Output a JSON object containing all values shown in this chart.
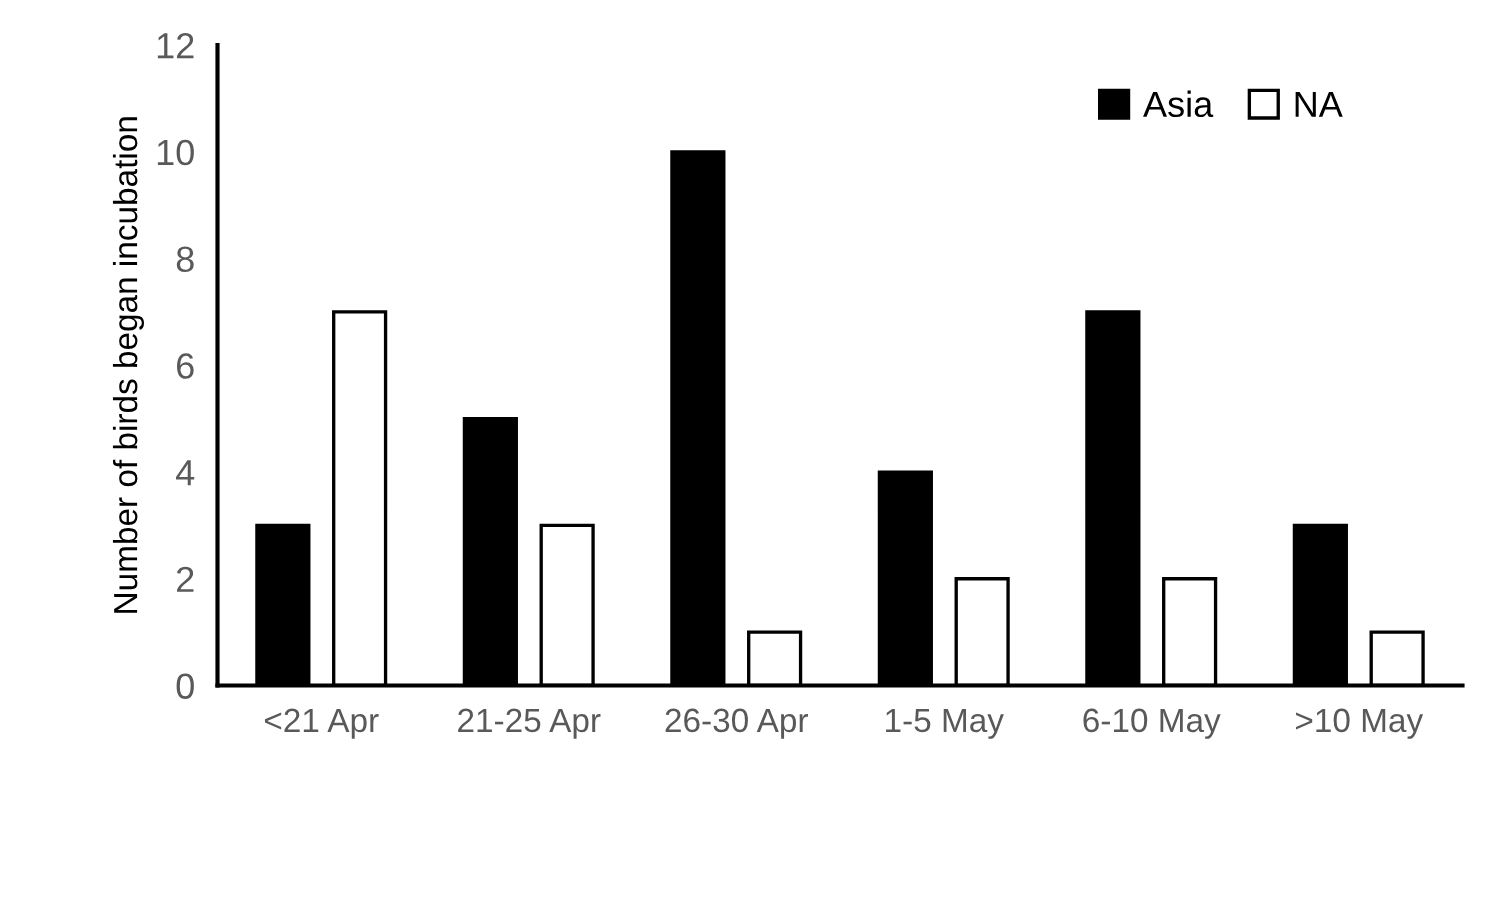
{
  "chart_data": {
    "type": "bar",
    "ylabel": "Number of birds began incubation",
    "categories": [
      "<21 Apr",
      "21-25 Apr",
      "26-30 Apr",
      "1-5 May",
      "6-10 May",
      ">10 May"
    ],
    "series": [
      {
        "name": "Asia",
        "color": "#000000",
        "values": [
          3,
          5,
          10,
          4,
          7,
          3
        ]
      },
      {
        "name": "NA",
        "color": "#ffffff",
        "values": [
          7,
          3,
          1,
          2,
          2,
          1
        ]
      }
    ],
    "ylim": [
      0,
      12
    ],
    "yticks": [
      0,
      2,
      4,
      6,
      8,
      10,
      12
    ],
    "grid": false,
    "legend": "top right"
  }
}
